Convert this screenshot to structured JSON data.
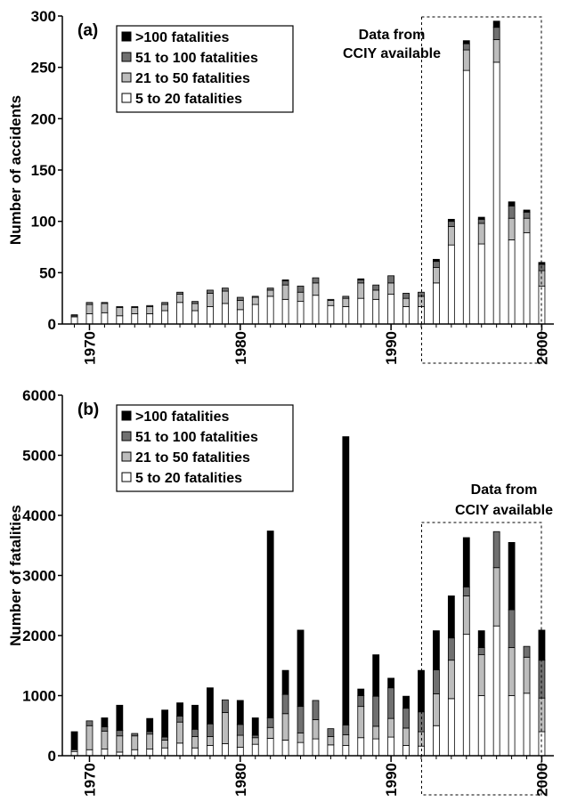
{
  "colors": {
    "over100": "#000000",
    "51to100": "#707070",
    "21to50": "#bdbdbd",
    "5to20": "#ffffff"
  },
  "legend": [
    {
      "key": "over100",
      "label": ">100 fatalities"
    },
    {
      "key": "51to100",
      "label": "51 to 100 fatalities"
    },
    {
      "key": "21to50",
      "label": "21 to 50 fatalities"
    },
    {
      "key": "5to20",
      "label": "5 to 20 fatalities"
    }
  ],
  "annotation": {
    "line1": "Data from",
    "line2": "CCIY available"
  },
  "chart_data": [
    {
      "type": "bar",
      "stacked": true,
      "panel_label": "(a)",
      "ylabel": "Number of accidents",
      "ylim": [
        0,
        300
      ],
      "yticks": [
        0,
        50,
        100,
        150,
        200,
        250,
        300
      ],
      "xlim": [
        1968.2,
        2000.8
      ],
      "xticks": [
        1970,
        1980,
        1990,
        2000
      ],
      "legend_position": "top-left",
      "grid": false,
      "highlight_range": [
        1992.5,
        1999.5
      ],
      "x": [
        1969,
        1970,
        1971,
        1972,
        1973,
        1974,
        1975,
        1976,
        1977,
        1978,
        1979,
        1980,
        1981,
        1982,
        1983,
        1984,
        1985,
        1986,
        1987,
        1988,
        1989,
        1990,
        1991,
        1992,
        1993,
        1994,
        1995,
        1996,
        1997,
        1998,
        1999,
        2000
      ],
      "series": [
        {
          "key": "5to20",
          "name": "5 to 20 fatalities",
          "values": [
            7,
            10,
            11,
            8,
            10,
            10,
            13,
            21,
            13,
            17,
            20,
            14,
            19,
            27,
            24,
            22,
            28,
            18,
            17,
            25,
            24,
            29,
            17,
            17,
            40,
            77,
            247,
            78,
            255,
            82,
            89,
            37
          ]
        },
        {
          "key": "21to50",
          "name": "21 to 50 fatalities",
          "values": [
            1,
            9,
            9,
            8,
            6,
            7,
            6,
            8,
            7,
            13,
            12,
            9,
            7,
            6,
            14,
            9,
            12,
            5,
            8,
            15,
            9,
            11,
            8,
            10,
            15,
            18,
            20,
            20,
            22,
            21,
            14,
            15
          ]
        },
        {
          "key": "51to100",
          "name": "51 to 100 fatalities",
          "values": [
            1,
            2,
            1,
            1,
            1,
            1,
            2,
            2,
            2,
            3,
            3,
            3,
            1,
            2,
            4,
            6,
            5,
            1,
            2,
            3,
            5,
            7,
            5,
            4,
            6,
            5,
            6,
            4,
            12,
            12,
            6,
            6
          ]
        },
        {
          "key": "over100",
          "name": ">100 fatalities",
          "values": [
            0,
            0,
            0,
            0,
            0,
            0,
            0,
            0,
            0,
            0,
            0,
            0,
            0,
            0,
            1,
            0,
            0,
            0,
            0,
            1,
            0,
            0,
            0,
            0,
            2,
            2,
            3,
            2,
            6,
            4,
            2,
            2
          ]
        }
      ]
    },
    {
      "type": "bar",
      "stacked": true,
      "panel_label": "(b)",
      "ylabel": "Number of fatalities",
      "ylim": [
        0,
        6000
      ],
      "yticks": [
        0,
        1000,
        2000,
        3000,
        4000,
        5000,
        6000
      ],
      "xlim": [
        1968.2,
        2000.8
      ],
      "xticks": [
        1970,
        1980,
        1990,
        2000
      ],
      "legend_position": "top-left",
      "grid": false,
      "highlight_range": [
        1992.5,
        1999.5
      ],
      "x": [
        1969,
        1970,
        1971,
        1972,
        1973,
        1974,
        1975,
        1976,
        1977,
        1978,
        1979,
        1980,
        1981,
        1982,
        1983,
        1984,
        1985,
        1986,
        1987,
        1988,
        1989,
        1990,
        1991,
        1992,
        1993,
        1994,
        1995,
        1996,
        1997,
        1998,
        1999,
        2000
      ],
      "series": [
        {
          "key": "5to20",
          "name": "5 to 20 fatalities",
          "values": [
            70,
            100,
            110,
            60,
            100,
            110,
            130,
            210,
            130,
            170,
            200,
            140,
            190,
            290,
            260,
            220,
            280,
            180,
            170,
            300,
            280,
            310,
            170,
            160,
            500,
            950,
            2020,
            1000,
            2160,
            1000,
            1040,
            400
          ]
        },
        {
          "key": "21to50",
          "name": "21 to 50 fatalities",
          "values": [
            30,
            400,
            300,
            270,
            230,
            250,
            130,
            350,
            190,
            150,
            520,
            200,
            110,
            180,
            440,
            160,
            320,
            140,
            180,
            520,
            210,
            310,
            290,
            240,
            530,
            640,
            640,
            680,
            970,
            800,
            600,
            560
          ]
        },
        {
          "key": "51to100",
          "name": "51 to 100 fatalities",
          "values": [
            0,
            80,
            70,
            90,
            40,
            40,
            50,
            100,
            120,
            210,
            210,
            180,
            40,
            160,
            320,
            440,
            320,
            130,
            160,
            180,
            500,
            510,
            330,
            330,
            400,
            370,
            150,
            120,
            600,
            630,
            180,
            630
          ]
        },
        {
          "key": "over100",
          "name": ">100 fatalities",
          "values": [
            300,
            0,
            150,
            420,
            0,
            220,
            450,
            220,
            400,
            600,
            0,
            400,
            290,
            3110,
            400,
            1270,
            0,
            0,
            4800,
            110,
            690,
            160,
            200,
            690,
            650,
            700,
            820,
            280,
            0,
            1120,
            0,
            500
          ]
        }
      ]
    }
  ]
}
